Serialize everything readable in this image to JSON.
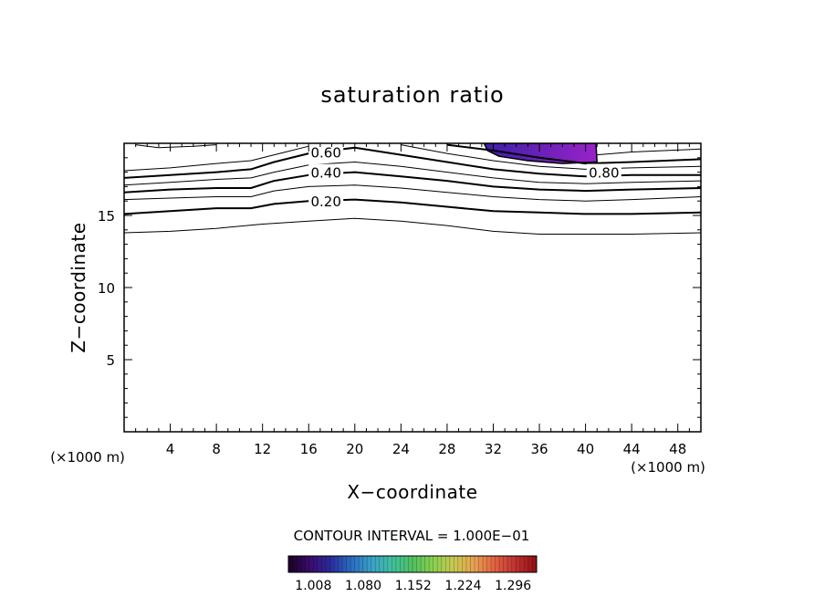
{
  "chart_data": {
    "type": "contour",
    "title": "saturation ratio",
    "xlabel": "X−coordinate",
    "ylabel": "Z−coordinate",
    "x_unit": "(×1000 m)",
    "y_unit": "(×1000 m)",
    "xlim": [
      0,
      50
    ],
    "ylim": [
      0,
      20
    ],
    "x_ticks": [
      4,
      8,
      12,
      16,
      20,
      24,
      28,
      32,
      36,
      40,
      44,
      48
    ],
    "y_ticks": [
      5,
      10,
      15
    ],
    "contour_interval_text": "CONTOUR INTERVAL = 1.000E−01",
    "contour_labels": [
      {
        "text": "0.60",
        "x": 17.5,
        "z": 19.4
      },
      {
        "text": "0.40",
        "x": 17.5,
        "z": 18.0
      },
      {
        "text": "0.20",
        "x": 17.5,
        "z": 16.0
      },
      {
        "text": "0.80",
        "x": 41.6,
        "z": 18.0
      }
    ],
    "contours": [
      {
        "level": 0.1,
        "points": [
          [
            0,
            13.8
          ],
          [
            4,
            13.9
          ],
          [
            8,
            14.1
          ],
          [
            12,
            14.4
          ],
          [
            16,
            14.6
          ],
          [
            20,
            14.8
          ],
          [
            24,
            14.6
          ],
          [
            28,
            14.3
          ],
          [
            32,
            13.9
          ],
          [
            36,
            13.7
          ],
          [
            40,
            13.7
          ],
          [
            44,
            13.7
          ],
          [
            50,
            13.8
          ]
        ]
      },
      {
        "level": 0.2,
        "points": [
          [
            0,
            15.1
          ],
          [
            4,
            15.3
          ],
          [
            8,
            15.5
          ],
          [
            11,
            15.5
          ],
          [
            13,
            15.8
          ],
          [
            16,
            16.0
          ],
          [
            20,
            16.1
          ],
          [
            24,
            15.9
          ],
          [
            28,
            15.6
          ],
          [
            32,
            15.3
          ],
          [
            36,
            15.2
          ],
          [
            40,
            15.1
          ],
          [
            44,
            15.1
          ],
          [
            50,
            15.2
          ]
        ]
      },
      {
        "level": 0.3,
        "points": [
          [
            0,
            16.1
          ],
          [
            4,
            16.2
          ],
          [
            8,
            16.3
          ],
          [
            11,
            16.3
          ],
          [
            13,
            16.7
          ],
          [
            16,
            17.0
          ],
          [
            20,
            17.1
          ],
          [
            24,
            16.9
          ],
          [
            28,
            16.6
          ],
          [
            32,
            16.3
          ],
          [
            36,
            16.1
          ],
          [
            40,
            16.0
          ],
          [
            44,
            16.1
          ],
          [
            50,
            16.3
          ]
        ]
      },
      {
        "level": 0.4,
        "points": [
          [
            0,
            16.6
          ],
          [
            4,
            16.8
          ],
          [
            8,
            16.9
          ],
          [
            11,
            16.9
          ],
          [
            13,
            17.4
          ],
          [
            16,
            17.8
          ],
          [
            20,
            18.0
          ],
          [
            24,
            17.7
          ],
          [
            28,
            17.4
          ],
          [
            32,
            17.0
          ],
          [
            36,
            16.8
          ],
          [
            40,
            16.7
          ],
          [
            44,
            16.8
          ],
          [
            50,
            16.9
          ]
        ]
      },
      {
        "level": 0.5,
        "points": [
          [
            0,
            17.1
          ],
          [
            4,
            17.3
          ],
          [
            8,
            17.5
          ],
          [
            11,
            17.6
          ],
          [
            13,
            18.0
          ],
          [
            16,
            18.5
          ],
          [
            20,
            18.7
          ],
          [
            24,
            18.4
          ],
          [
            28,
            18.0
          ],
          [
            32,
            17.6
          ],
          [
            36,
            17.3
          ],
          [
            40,
            17.2
          ],
          [
            44,
            17.3
          ],
          [
            50,
            17.4
          ]
        ]
      },
      {
        "level": 0.6,
        "points": [
          [
            0,
            17.6
          ],
          [
            4,
            17.8
          ],
          [
            8,
            18.0
          ],
          [
            11,
            18.2
          ],
          [
            13,
            18.7
          ],
          [
            16,
            19.3
          ],
          [
            20,
            19.7
          ],
          [
            24,
            19.2
          ],
          [
            28,
            18.7
          ],
          [
            32,
            18.2
          ],
          [
            36,
            17.9
          ],
          [
            40,
            17.7
          ],
          [
            44,
            17.8
          ],
          [
            50,
            17.8
          ]
        ]
      },
      {
        "level": 0.7,
        "points": [
          [
            0,
            18.1
          ],
          [
            4,
            18.3
          ],
          [
            8,
            18.6
          ],
          [
            11,
            18.8
          ],
          [
            14,
            19.4
          ],
          [
            16,
            19.8
          ]
        ]
      },
      {
        "level": 0.7,
        "points": [
          [
            24,
            19.9
          ],
          [
            28,
            19.3
          ],
          [
            32,
            18.8
          ],
          [
            36,
            18.4
          ],
          [
            40,
            18.2
          ],
          [
            44,
            18.3
          ],
          [
            50,
            18.4
          ]
        ]
      },
      {
        "level": 0.8,
        "points": [
          [
            28,
            19.9
          ],
          [
            32,
            19.5
          ],
          [
            36,
            19.0
          ],
          [
            40,
            18.6
          ],
          [
            44,
            18.7
          ],
          [
            50,
            18.9
          ]
        ]
      },
      {
        "level": 0.9,
        "points": [
          [
            1,
            19.9
          ],
          [
            3,
            19.7
          ],
          [
            6,
            19.8
          ],
          [
            8,
            19.9
          ]
        ]
      },
      {
        "level": 0.9,
        "points": [
          [
            41,
            19.2
          ],
          [
            44,
            19.4
          ],
          [
            47,
            19.5
          ],
          [
            50,
            19.6
          ]
        ]
      }
    ],
    "supersaturated_region": [
      [
        31.2,
        20
      ],
      [
        40.9,
        20
      ],
      [
        41.0,
        18.7
      ],
      [
        38,
        18.6
      ],
      [
        35,
        18.8
      ],
      [
        32.5,
        19.1
      ],
      [
        31.5,
        19.5
      ]
    ],
    "colorbar": {
      "ticks": [
        1.008,
        1.08,
        1.152,
        1.224,
        1.296
      ],
      "tick_labels": [
        "1.008",
        "1.080",
        "1.152",
        "1.224",
        "1.296"
      ],
      "range": [
        0.972,
        1.33
      ],
      "colors": [
        "#1a0022",
        "#3a0a6a",
        "#2a2a9a",
        "#2a6ac0",
        "#3aa0c8",
        "#40c0a0",
        "#50c060",
        "#8ad050",
        "#c8c850",
        "#e8a050",
        "#e06040",
        "#c03030",
        "#901010"
      ]
    },
    "fill_colors": {
      "high": "#9a22c8",
      "low": "#3a20a8"
    }
  }
}
